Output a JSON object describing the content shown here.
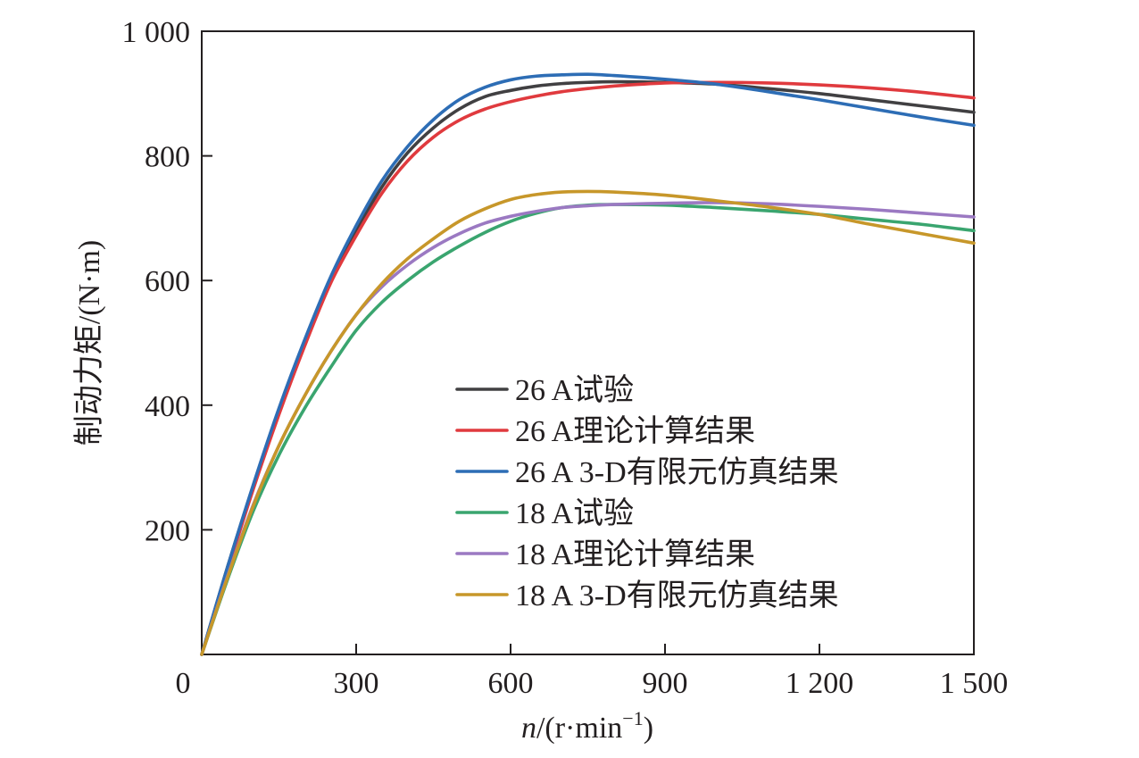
{
  "chart_data": {
    "type": "line",
    "xlabel": "n/(r·min⁻¹)",
    "xlabel_italic": "n",
    "xlabel_rest": "/(r·min",
    "xlabel_sup": "−1",
    "xlabel_close": ")",
    "ylabel": "制动力矩/(N·m)",
    "xlim": [
      0,
      1500
    ],
    "ylim": [
      0,
      1000
    ],
    "x_ticks": [
      0,
      300,
      600,
      900,
      1200,
      1500
    ],
    "x_tick_labels": [
      "0",
      "300",
      "600",
      "900",
      "1 200",
      "1 500"
    ],
    "y_ticks": [
      200,
      400,
      600,
      800,
      1000
    ],
    "y_tick_labels": [
      "200",
      "400",
      "600",
      "800",
      "1 000"
    ],
    "grid": false,
    "legend_position": "center-right",
    "series": [
      {
        "name": "26 A试验",
        "color": "#414042",
        "x": [
          0,
          50,
          100,
          150,
          200,
          250,
          300,
          350,
          400,
          450,
          500,
          550,
          600,
          650,
          700,
          750,
          800,
          900,
          1000,
          1100,
          1200,
          1300,
          1400,
          1500
        ],
        "y": [
          0,
          140,
          270,
          390,
          500,
          600,
          680,
          750,
          805,
          845,
          875,
          895,
          905,
          912,
          916,
          918,
          919,
          918,
          915,
          908,
          900,
          890,
          880,
          870
        ]
      },
      {
        "name": "26 A理论计算结果",
        "color": "#e03a3e",
        "x": [
          0,
          50,
          100,
          150,
          200,
          250,
          300,
          350,
          400,
          450,
          500,
          550,
          600,
          650,
          700,
          750,
          800,
          900,
          1000,
          1100,
          1200,
          1300,
          1400,
          1500
        ],
        "y": [
          0,
          135,
          265,
          385,
          495,
          595,
          672,
          740,
          792,
          830,
          857,
          875,
          887,
          896,
          903,
          908,
          912,
          917,
          918,
          917,
          914,
          909,
          902,
          893
        ]
      },
      {
        "name": "26 A 3-D有限元仿真结果",
        "color": "#2d6db5",
        "x": [
          0,
          50,
          100,
          150,
          200,
          250,
          300,
          350,
          400,
          450,
          500,
          550,
          600,
          650,
          700,
          750,
          800,
          900,
          1000,
          1100,
          1200,
          1300,
          1400,
          1500
        ],
        "y": [
          0,
          140,
          272,
          395,
          505,
          605,
          688,
          760,
          815,
          858,
          890,
          910,
          922,
          928,
          930,
          931,
          929,
          923,
          915,
          903,
          890,
          876,
          862,
          849
        ]
      },
      {
        "name": "18 A试验",
        "color": "#3aa56f",
        "x": [
          0,
          50,
          100,
          150,
          200,
          250,
          300,
          350,
          400,
          450,
          500,
          550,
          600,
          650,
          700,
          750,
          800,
          900,
          1000,
          1100,
          1200,
          1300,
          1400,
          1500
        ],
        "y": [
          0,
          120,
          230,
          320,
          395,
          460,
          520,
          565,
          600,
          630,
          655,
          677,
          695,
          708,
          717,
          721,
          722,
          721,
          717,
          712,
          706,
          698,
          690,
          680
        ]
      },
      {
        "name": "18 A理论计算结果",
        "color": "#9b79c2",
        "x": [
          0,
          50,
          100,
          150,
          200,
          250,
          300,
          350,
          400,
          450,
          500,
          550,
          600,
          650,
          700,
          750,
          800,
          900,
          1000,
          1100,
          1200,
          1300,
          1400,
          1500
        ],
        "y": [
          0,
          125,
          240,
          335,
          415,
          485,
          545,
          590,
          625,
          653,
          675,
          692,
          703,
          711,
          717,
          720,
          722,
          724,
          725,
          723,
          719,
          714,
          708,
          702
        ]
      },
      {
        "name": "18 A 3-D有限元仿真结果",
        "color": "#c7972a",
        "x": [
          0,
          50,
          100,
          150,
          200,
          250,
          300,
          350,
          400,
          450,
          500,
          550,
          600,
          650,
          700,
          750,
          800,
          900,
          1000,
          1100,
          1200,
          1300,
          1400,
          1500
        ],
        "y": [
          0,
          123,
          238,
          335,
          415,
          485,
          545,
          595,
          635,
          667,
          695,
          715,
          730,
          738,
          742,
          743,
          742,
          737,
          728,
          718,
          706,
          690,
          675,
          660
        ]
      }
    ]
  }
}
